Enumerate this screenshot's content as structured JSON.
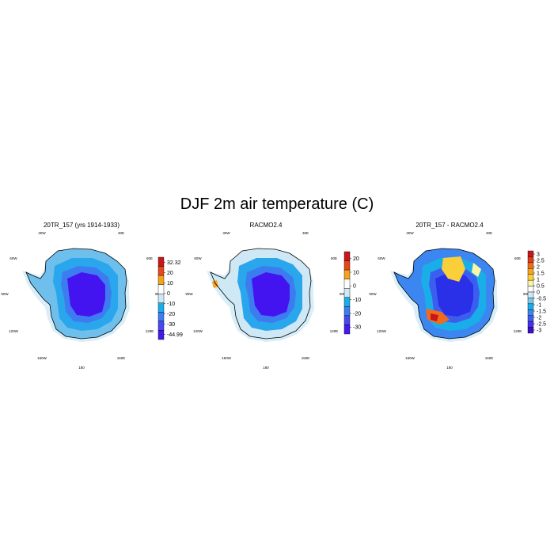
{
  "figure": {
    "title": "DJF 2m air temperature (C)"
  },
  "panels": [
    {
      "title": "20TR_157 (yrs 1914-1933)",
      "lon_labels": [
        "30W",
        "30E",
        "60W",
        "60E",
        "90W",
        "90E",
        "120W",
        "120E",
        "150W",
        "150E",
        "180"
      ],
      "colorbar": {
        "labels": [
          "32.32",
          "20",
          "10",
          "0",
          "-10",
          "-20",
          "-30",
          "-44.99"
        ],
        "colors": [
          "#c8161d",
          "#e8471a",
          "#f7a21b",
          "#ffffff",
          "#cfe8f6",
          "#1aaee8",
          "#3c7ef2",
          "#4848f0",
          "#4618f0"
        ]
      },
      "field": {
        "edge": "#6fbfed",
        "ring": "#2aa6ec",
        "mid": "#3d7cf0",
        "core": "#4414f0"
      }
    },
    {
      "title": "RACMO2.4",
      "lon_labels": [
        "30W",
        "30E",
        "60W",
        "60E",
        "90W",
        "90E",
        "120W",
        "120E",
        "150W",
        "150E",
        "180"
      ],
      "colorbar": {
        "labels": [
          "20",
          "10",
          "0",
          "-10",
          "-20",
          "-30"
        ],
        "colors": [
          "#c8161d",
          "#e8471a",
          "#f7a21b",
          "#ffffff",
          "#cfe8f6",
          "#1aaee8",
          "#3c7ef2",
          "#4848f0",
          "#4618f0"
        ]
      },
      "field": {
        "edge": "#cfe8f6",
        "ring": "#2aa6ec",
        "mid": "#3d7cf0",
        "core": "#4414f0"
      }
    },
    {
      "title": "20TR_157 - RACMO2.4",
      "lon_labels": [
        "30W",
        "30E",
        "60W",
        "60E",
        "90W",
        "90E",
        "120W",
        "120E",
        "150W",
        "150E",
        "180"
      ],
      "colorbar": {
        "labels": [
          "3",
          "2.5",
          "2",
          "1.5",
          "1",
          "0.5",
          "0",
          "-0.5",
          "-1",
          "-1.5",
          "-2",
          "-2.5",
          "-3"
        ],
        "colors": [
          "#c8161d",
          "#e23a1a",
          "#f26b1a",
          "#f8a41c",
          "#fbcf3a",
          "#fdf5a6",
          "#ffffff",
          "#cfe8f6",
          "#77c9f0",
          "#1aaee8",
          "#3c86f2",
          "#3c5ef0",
          "#4a2ef0",
          "#3a10c8"
        ]
      },
      "field": {
        "edge": "#3c86f2",
        "ring": "#1aaee8",
        "mid": "#3c5ef0",
        "core": "#2a30e8"
      }
    }
  ]
}
